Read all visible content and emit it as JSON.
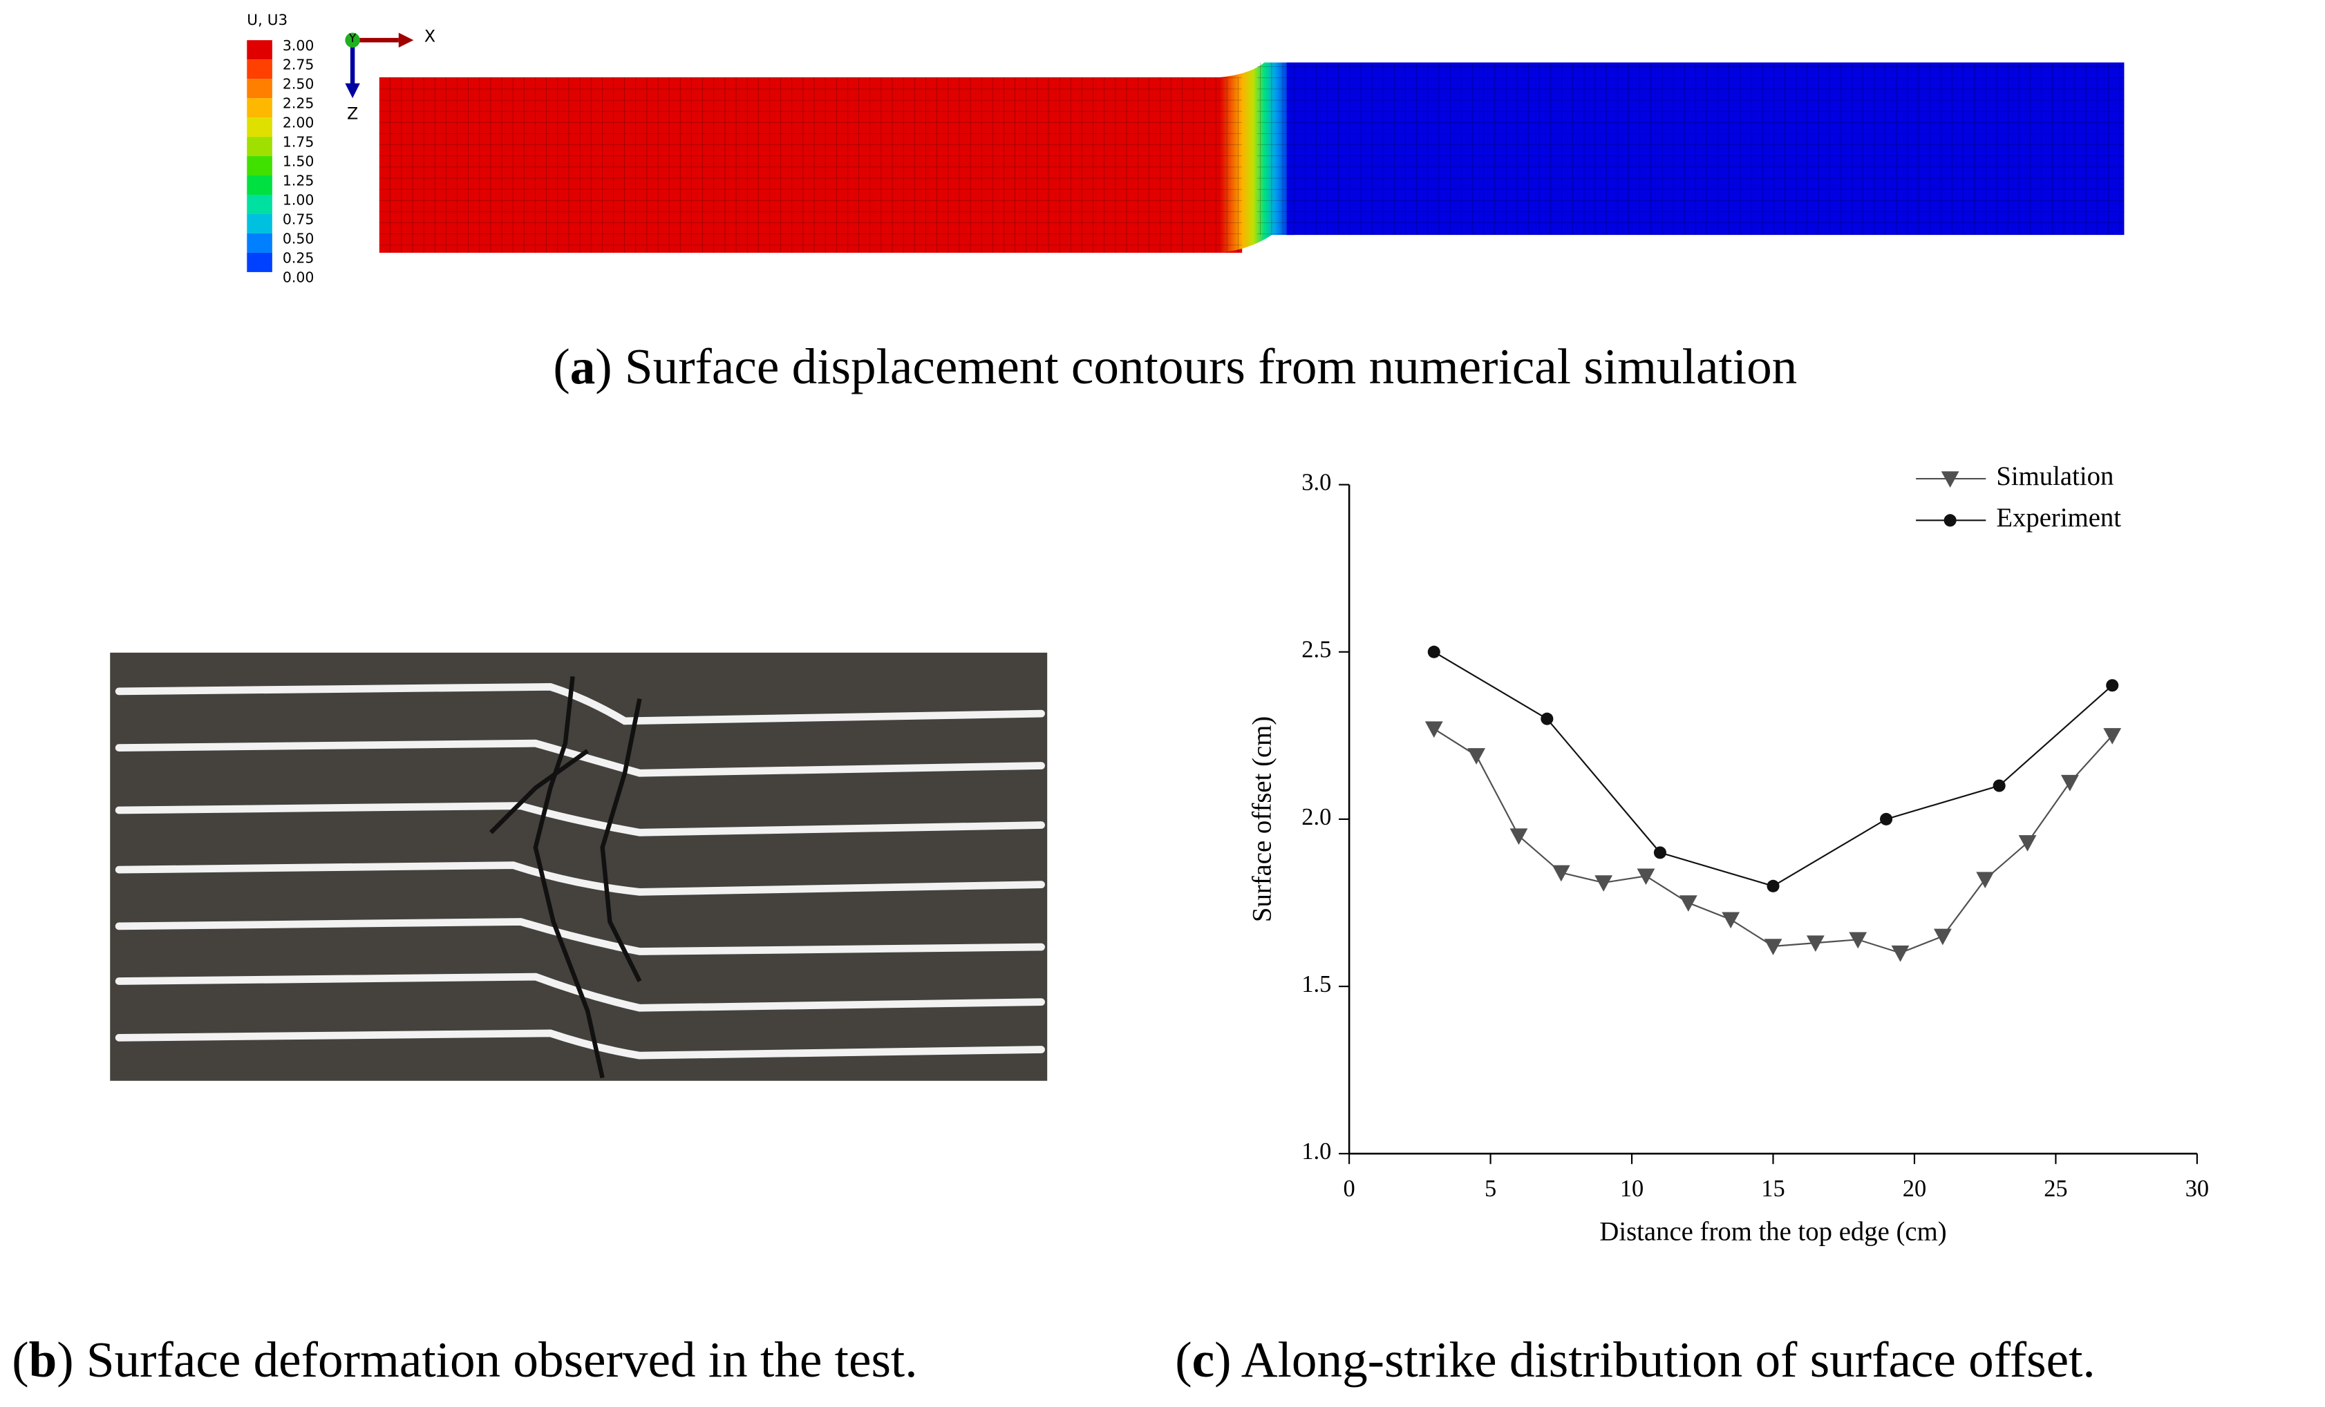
{
  "figure": {
    "contour_legend": {
      "title": "U, U3",
      "levels": [
        "3.00",
        "2.75",
        "2.50",
        "2.25",
        "2.00",
        "1.75",
        "1.50",
        "1.25",
        "1.00",
        "0.75",
        "0.50",
        "0.25",
        "0.00"
      ]
    },
    "triad": {
      "y": "Y",
      "x": "X",
      "z": "Z"
    },
    "caption_a": [
      "(",
      "a",
      ") Surface displacement contours from numerical simulation"
    ],
    "caption_b": [
      "(",
      "b",
      ") Surface deformation observed in the test."
    ],
    "caption_c": [
      "(",
      "c",
      ") Along-strike distribution of surface offset."
    ]
  },
  "chart_data": {
    "type": "line",
    "x_label": "Distance from the top edge (cm)",
    "y_label": "Surface offset (cm)",
    "xlim": [
      0,
      30
    ],
    "xticks": [
      0,
      5,
      10,
      15,
      20,
      25,
      30
    ],
    "ylim": [
      1,
      3
    ],
    "yticks": [
      {
        "value": 1,
        "label": "1.0"
      },
      {
        "value": 1.5,
        "label": "1.5"
      },
      {
        "value": 2,
        "label": "2.0"
      },
      2.5,
      {
        "value": 3,
        "label": "3.0"
      }
    ],
    "legend": "upper right",
    "series": [
      {
        "name": "Simulation",
        "color": "#505050",
        "marker": "triangle-down",
        "x": [
          3,
          4.5,
          6,
          7.5,
          9,
          10.5,
          12,
          13.5,
          15,
          16.5,
          18,
          19.5,
          21,
          22.5,
          24,
          25.5,
          27
        ],
        "values": [
          2.27,
          2.19,
          1.95,
          1.84,
          1.81,
          1.83,
          1.75,
          1.7,
          1.62,
          1.63,
          1.64,
          1.6,
          1.65,
          1.82,
          1.93,
          2.11,
          2.25
        ]
      },
      {
        "name": "Experiment",
        "color": "#111111",
        "marker": "circle",
        "x": [
          3,
          7,
          11,
          15,
          19,
          23,
          27
        ],
        "values": [
          2.5,
          2.3,
          1.9,
          1.8,
          2.0,
          2.1,
          2.4
        ]
      }
    ]
  }
}
